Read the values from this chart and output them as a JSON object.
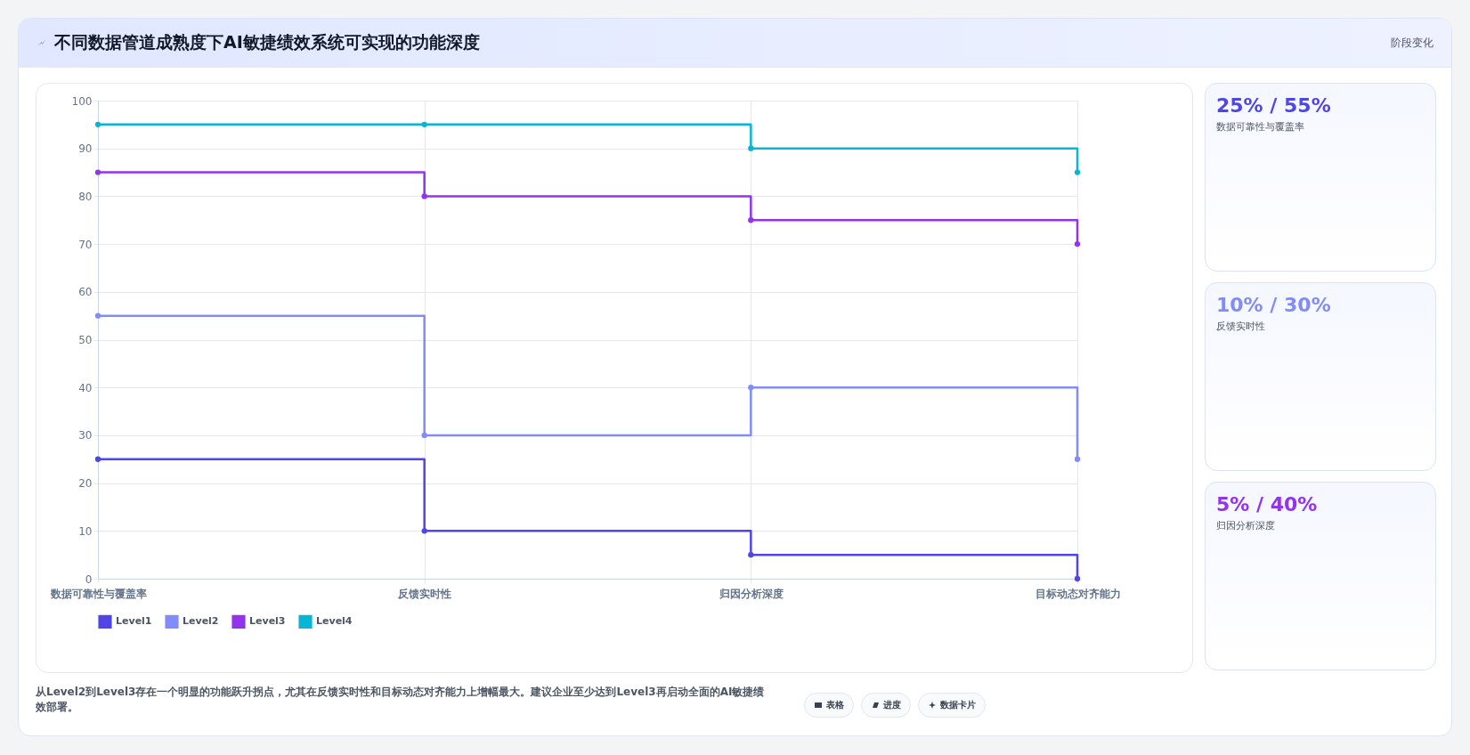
{
  "chart_data": [
    {
      "type": "step",
      "title": "不同数据管道成熟度下AI敏捷绩效系统可实现的功能深度",
      "categories": [
        "数据可靠性与覆盖率",
        "反馈实时性",
        "归因分析深度",
        "目标动态对齐能力"
      ],
      "series": [
        {
          "name": "Level1",
          "color": "#4f46e5",
          "values": [
            25,
            10,
            5,
            0
          ]
        },
        {
          "name": "Level2",
          "color": "#818cf8",
          "values": [
            55,
            30,
            40,
            25
          ]
        },
        {
          "name": "Level3",
          "color": "#9333ea",
          "values": [
            85,
            80,
            75,
            70
          ]
        },
        {
          "name": "Level4",
          "color": "#06b6d4",
          "values": [
            95,
            95,
            90,
            85
          ]
        }
      ],
      "ylim": [
        0,
        100
      ],
      "yticks": [
        0,
        10,
        20,
        30,
        40,
        50,
        60,
        70,
        80,
        90,
        100
      ],
      "grid": true,
      "legend": "bottom",
      "marker": "circle",
      "annotations": [
        "阶段变化",
        "从Level2到Level3存在一个明显的功能跃升拐点，尤其在反馈实时性和目标动态对齐能力上增幅最大。建议企业至少达到Level3再启动全面的AI敏捷绩效部署。",
        "表格",
        "进度",
        "数据卡片"
      ]
    },
    {
      "type": "other",
      "title": "25% / 55%",
      "subtitle": "数据可靠性与覆盖率",
      "color": "#4f46e5"
    },
    {
      "type": "other",
      "title": "10% / 30%",
      "subtitle": "反馈实时性",
      "color": "#818cf8"
    },
    {
      "type": "other",
      "title": "5% / 40%",
      "subtitle": "归因分析深度",
      "color": "#9333ea"
    }
  ]
}
